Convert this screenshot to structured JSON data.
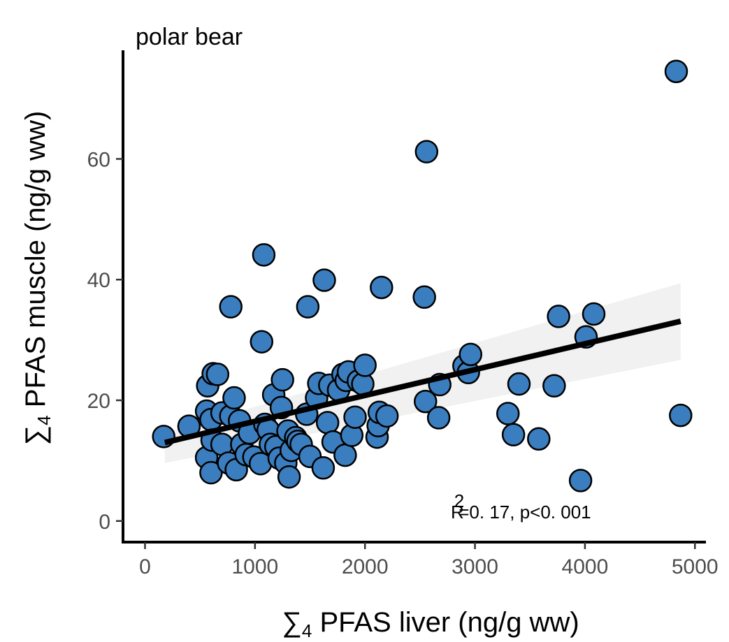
{
  "chart_data": {
    "type": "scatter",
    "title": "polar bear",
    "xlabel": {
      "symbol": "∑",
      "sub": "4",
      "text": " PFAS liver (ng/g ww)"
    },
    "ylabel": {
      "symbol": "∑",
      "sub": "4",
      "text": " PFAS muscle (ng/g ww)"
    },
    "xlim": [
      -200,
      5100
    ],
    "ylim": [
      -3.5,
      78
    ],
    "xticks": [
      0,
      1000,
      2000,
      3000,
      4000,
      5000
    ],
    "yticks": [
      0,
      20,
      40,
      60
    ],
    "xtick_labels": [
      "0",
      "1000",
      "2000",
      "3000",
      "4000",
      "5000"
    ],
    "ytick_labels": [
      "0",
      "20",
      "40",
      "60"
    ],
    "grid": false,
    "point_color": "#3b7ebf",
    "point_edge_color": "#000000",
    "line_color": "#000000",
    "band_color": "#ebebeb",
    "fit_line": {
      "x": [
        180,
        4870
      ],
      "y": [
        13.0,
        33.1
      ]
    },
    "confidence_band": {
      "x": [
        180,
        4870
      ],
      "upper": [
        14.6,
        39.4
      ],
      "lower": [
        9.6,
        26.7
      ]
    },
    "annotation": {
      "r_label": "R",
      "r_sup": "2",
      "text": "=0. 17,   p<0. 001"
    },
    "points": [
      [
        170,
        14
      ],
      [
        400,
        15.7
      ],
      [
        560,
        10.5
      ],
      [
        560,
        18.2
      ],
      [
        570,
        22.4
      ],
      [
        620,
        24.4
      ],
      [
        660,
        24.3
      ],
      [
        600,
        16.8
      ],
      [
        610,
        13.4
      ],
      [
        600,
        8.0
      ],
      [
        700,
        17.9
      ],
      [
        700,
        12.7
      ],
      [
        760,
        9.6
      ],
      [
        780,
        35.5
      ],
      [
        780,
        17.4
      ],
      [
        810,
        20.4
      ],
      [
        830,
        8.5
      ],
      [
        860,
        16.6
      ],
      [
        880,
        12.7
      ],
      [
        920,
        11.0
      ],
      [
        950,
        14.6
      ],
      [
        990,
        10.6
      ],
      [
        1050,
        9.5
      ],
      [
        1060,
        29.7
      ],
      [
        1080,
        44.1
      ],
      [
        1090,
        16.0
      ],
      [
        1120,
        15.1
      ],
      [
        1140,
        12.7
      ],
      [
        1170,
        20.9
      ],
      [
        1190,
        12.3
      ],
      [
        1220,
        10.4
      ],
      [
        1240,
        18.8
      ],
      [
        1250,
        23.4
      ],
      [
        1280,
        9.6
      ],
      [
        1300,
        14.9
      ],
      [
        1310,
        7.3
      ],
      [
        1330,
        11.7
      ],
      [
        1370,
        13.8
      ],
      [
        1390,
        13.2
      ],
      [
        1420,
        12.7
      ],
      [
        1470,
        17.7
      ],
      [
        1480,
        35.5
      ],
      [
        1500,
        10.7
      ],
      [
        1560,
        20.4
      ],
      [
        1580,
        22.8
      ],
      [
        1620,
        8.8
      ],
      [
        1630,
        39.9
      ],
      [
        1660,
        16.3
      ],
      [
        1680,
        22.5
      ],
      [
        1710,
        13.1
      ],
      [
        1760,
        21.7
      ],
      [
        1800,
        24.3
      ],
      [
        1820,
        10.9
      ],
      [
        1830,
        23.3
      ],
      [
        1850,
        24.7
      ],
      [
        1880,
        14.2
      ],
      [
        1910,
        17.2
      ],
      [
        1940,
        23.2
      ],
      [
        1980,
        22.7
      ],
      [
        2000,
        25.8
      ],
      [
        2110,
        13.9
      ],
      [
        2120,
        15.8
      ],
      [
        2130,
        18.0
      ],
      [
        2150,
        38.7
      ],
      [
        2200,
        17.4
      ],
      [
        2540,
        37.1
      ],
      [
        2550,
        19.8
      ],
      [
        2560,
        61.2
      ],
      [
        2670,
        17.1
      ],
      [
        2680,
        22.6
      ],
      [
        2900,
        25.7
      ],
      [
        2940,
        24.6
      ],
      [
        2960,
        27.6
      ],
      [
        3300,
        17.8
      ],
      [
        3350,
        14.3
      ],
      [
        3400,
        22.7
      ],
      [
        3580,
        13.6
      ],
      [
        3720,
        22.4
      ],
      [
        3760,
        33.9
      ],
      [
        3960,
        6.7
      ],
      [
        4010,
        30.5
      ],
      [
        4080,
        34.3
      ],
      [
        4830,
        74.5
      ],
      [
        4870,
        17.5
      ]
    ]
  }
}
